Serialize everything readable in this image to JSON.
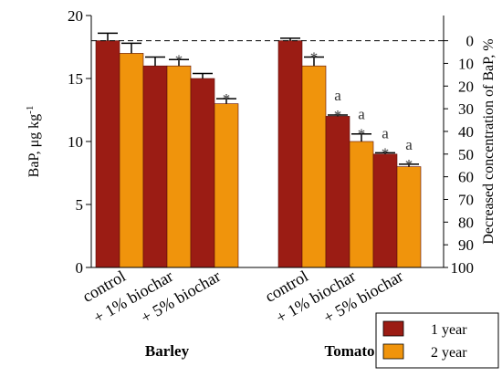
{
  "chart_data": {
    "type": "bar",
    "ylabel": "BaP, μg kg",
    "ylabel_superscript": "-1",
    "y2label": "Decreased concentration of BaP, %",
    "ylim": [
      0,
      20
    ],
    "yticks": [
      "0",
      "5",
      "10",
      "15",
      "20"
    ],
    "y2ticks": [
      "0",
      "10",
      "20",
      "30",
      "40",
      "50",
      "60",
      "70",
      "80",
      "90",
      "100"
    ],
    "reference_line": 18,
    "legend_position": "bottom-right",
    "colors": {
      "1 year": "#9b1c14",
      "2 year": "#f0940c"
    },
    "groups": [
      {
        "name": "Barley",
        "categories": [
          "control",
          "+ 1% biochar",
          "+ 5% biochar"
        ],
        "series": [
          {
            "name": "1 year",
            "values": [
              18.0,
              16.0,
              15.0
            ],
            "errors": [
              0.6,
              0.7,
              0.4
            ],
            "marks": [
              "",
              "",
              ""
            ]
          },
          {
            "name": "2 year",
            "values": [
              17.0,
              16.0,
              13.0
            ],
            "errors": [
              0.8,
              0.5,
              0.4
            ],
            "marks": [
              "",
              "*",
              "*"
            ]
          }
        ]
      },
      {
        "name": "Tomato",
        "categories": [
          "control",
          "+ 1% biochar",
          "+ 5% biochar"
        ],
        "series": [
          {
            "name": "1 year",
            "values": [
              18.0,
              12.0,
              9.0
            ],
            "errors": [
              0.2,
              0.1,
              0.1
            ],
            "marks": [
              "",
              "a\n*",
              "a\n*"
            ]
          },
          {
            "name": "2 year",
            "values": [
              16.0,
              10.0,
              8.0
            ],
            "errors": [
              0.7,
              0.6,
              0.2
            ],
            "marks": [
              "*",
              "a\n*",
              "a\n*"
            ]
          }
        ]
      }
    ]
  }
}
